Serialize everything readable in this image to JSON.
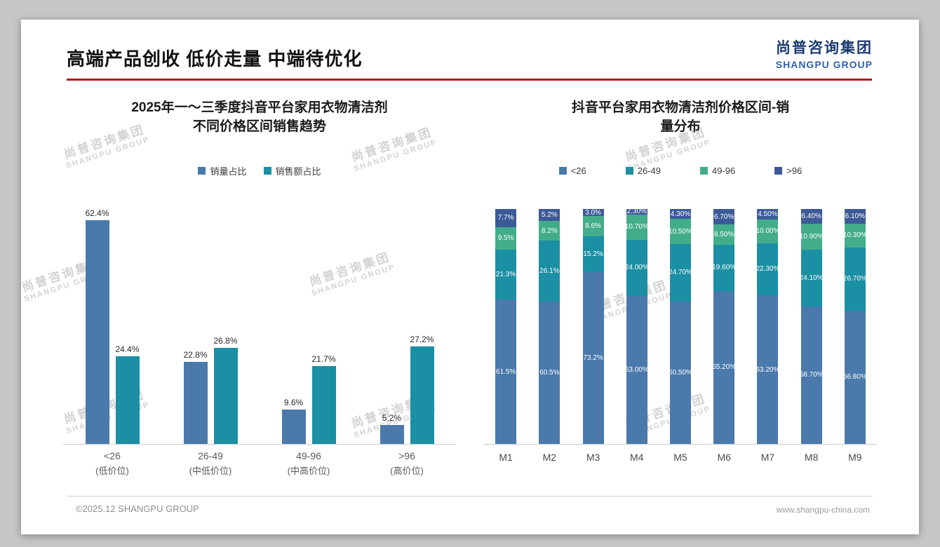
{
  "page": {
    "title": "高端产品创收 低价走量 中端待优化",
    "logo_cn": "尚普咨询集团",
    "logo_en": "SHANGPU GROUP",
    "footer_left": "©2025.12 SHANGPU GROUP",
    "footer_right": "www.shangpu-china.com",
    "watermark_cn": "尚普咨询集团",
    "watermark_en": "SHANGPU GROUP"
  },
  "colors": {
    "accent_red": "#b6181b",
    "logo_navy": "#1b3a70",
    "logo_blue": "#3062ae",
    "series_blue": "#4a79ab",
    "series_teal": "#1b8fa3",
    "series_green": "#43ad8b",
    "series_navy": "#3c5a97"
  },
  "chart_data": [
    {
      "type": "bar",
      "stacked": false,
      "title": "2025年一～三季度抖音平台家用衣物清洁剂不同价格区间销售趋势",
      "title_lines": [
        "2025年一～三季度抖音平台家用衣物清洁剂",
        "不同价格区间销售趋势"
      ],
      "legend_position": "top",
      "grid": false,
      "ylim": [
        0,
        70
      ],
      "categories": [
        {
          "label": "<26",
          "sub": "(低价位)"
        },
        {
          "label": "26-49",
          "sub": "(中低价位)"
        },
        {
          "label": "49-96",
          "sub": "(中高价位)"
        },
        {
          "label": ">96",
          "sub": "(高价位)"
        }
      ],
      "series": [
        {
          "name": "销量占比",
          "color": "#4a79ab",
          "values": [
            62.4,
            22.8,
            9.6,
            5.2
          ],
          "labels": [
            "62.4%",
            "22.8%",
            "9.6%",
            "5.2%"
          ]
        },
        {
          "name": "销售额占比",
          "color": "#1b8fa3",
          "values": [
            24.4,
            26.8,
            21.7,
            27.2
          ],
          "labels": [
            "24.4%",
            "26.8%",
            "21.7%",
            "27.2%"
          ]
        }
      ]
    },
    {
      "type": "bar",
      "stacked": true,
      "percent": true,
      "title": "抖音平台家用衣物清洁剂价格区间-销量分布",
      "title_lines": [
        "抖音平台家用衣物清洁剂价格区间-销",
        "量分布"
      ],
      "legend_position": "top",
      "grid": false,
      "ylim": [
        0,
        100
      ],
      "categories": [
        "M1",
        "M2",
        "M3",
        "M4",
        "M5",
        "M6",
        "M7",
        "M8",
        "M9"
      ],
      "series": [
        {
          "name": "<26",
          "color": "#4a79ab",
          "values": [
            61.5,
            60.5,
            73.2,
            63.0,
            60.5,
            65.2,
            63.2,
            58.7,
            56.8
          ],
          "labels": [
            "61.5%",
            "60.5%",
            "73.2%",
            "63.00%",
            "60.50%",
            "65.20%",
            "63.20%",
            "58.70%",
            "56.80%"
          ]
        },
        {
          "name": "26-49",
          "color": "#1b8fa3",
          "values": [
            21.3,
            26.1,
            15.2,
            24.0,
            24.7,
            19.6,
            22.3,
            24.1,
            26.7
          ],
          "labels": [
            "21.3%",
            "26.1%",
            "15.2%",
            "24.00%",
            "24.70%",
            "19.60%",
            "22.30%",
            "24.10%",
            "26.70%"
          ]
        },
        {
          "name": "49-96",
          "color": "#43ad8b",
          "values": [
            9.5,
            8.2,
            8.6,
            10.7,
            10.5,
            8.5,
            10.0,
            10.9,
            10.3
          ],
          "labels": [
            "9.5%",
            "8.2%",
            "8.6%",
            "10.70%",
            "10.50%",
            "8.50%",
            "10.00%",
            "10.90%",
            "10.30%"
          ]
        },
        {
          "name": ">96",
          "color": "#3c5a97",
          "values": [
            7.7,
            5.2,
            3.0,
            2.3,
            4.3,
            6.7,
            4.5,
            6.4,
            6.1
          ],
          "labels": [
            "7.7%",
            "5.2%",
            "3.0%",
            "2.30%",
            "4.30%",
            "6.70%",
            "4.50%",
            "6.40%",
            "6.10%"
          ]
        }
      ]
    }
  ]
}
